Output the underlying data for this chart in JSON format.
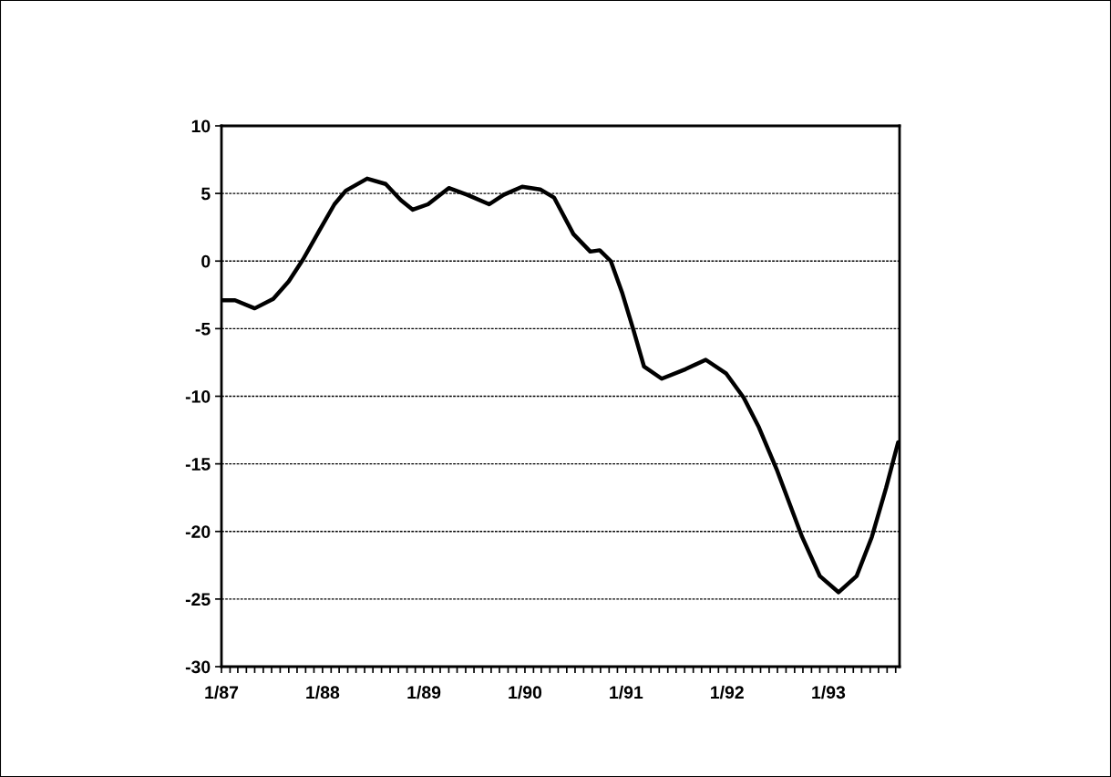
{
  "chart_data": {
    "type": "line",
    "x": [
      "1987-01-01",
      "1987-02-19",
      "1987-05-01",
      "1987-07-07",
      "1987-09-01",
      "1987-10-22",
      "1987-12-19",
      "1988-02-13",
      "1988-03-25",
      "1988-06-10",
      "1988-08-16",
      "1988-10-10",
      "1988-11-22",
      "1989-01-16",
      "1989-04-01",
      "1989-06-07",
      "1989-08-25",
      "1989-10-16",
      "1989-12-22",
      "1990-02-25",
      "1990-04-16",
      "1990-06-25",
      "1990-08-25",
      "1990-09-28",
      "1990-11-07",
      "1990-12-19",
      "1991-01-28",
      "1991-03-07",
      "1991-05-10",
      "1991-08-04",
      "1991-10-16",
      "1991-12-28",
      "1992-03-01",
      "1992-04-25",
      "1992-06-28",
      "1992-09-28",
      "1992-12-01",
      "1993-02-07",
      "1993-04-13",
      "1993-06-07",
      "1993-07-28",
      "1993-09-10"
    ],
    "series": [
      {
        "color": "#000000",
        "values": [
          -2.9,
          -2.9,
          -3.5,
          -2.8,
          -1.5,
          0.1,
          2.2,
          4.2,
          5.2,
          6.1,
          5.7,
          4.5,
          3.8,
          4.2,
          5.4,
          4.9,
          4.2,
          4.9,
          5.5,
          5.3,
          4.7,
          2.0,
          0.7,
          0.8,
          0.0,
          -2.4,
          -5.1,
          -7.8,
          -8.7,
          -8.0,
          -7.3,
          -8.3,
          -10.1,
          -12.3,
          -15.4,
          -20.4,
          -23.3,
          -24.5,
          -23.3,
          -20.4,
          -16.8,
          -13.4
        ]
      }
    ],
    "xlim": [
      "1987-01-01",
      "1993-09-15"
    ],
    "xticks": [
      {
        "value": "1987-01-01",
        "label": "1/87"
      },
      {
        "value": "1988-01-01",
        "label": "1/88"
      },
      {
        "value": "1989-01-01",
        "label": "1/89"
      },
      {
        "value": "1990-01-01",
        "label": "1/90"
      },
      {
        "value": "1991-01-01",
        "label": "1/91"
      },
      {
        "value": "1992-01-01",
        "label": "1/92"
      },
      {
        "value": "1993-01-01",
        "label": "1/93"
      }
    ],
    "ylim": [
      -30,
      10
    ],
    "yticks": [
      -30,
      -25,
      -20,
      -15,
      -10,
      -5,
      0,
      5,
      10
    ],
    "grid": "y",
    "marker": "none",
    "line_style": "solid"
  }
}
